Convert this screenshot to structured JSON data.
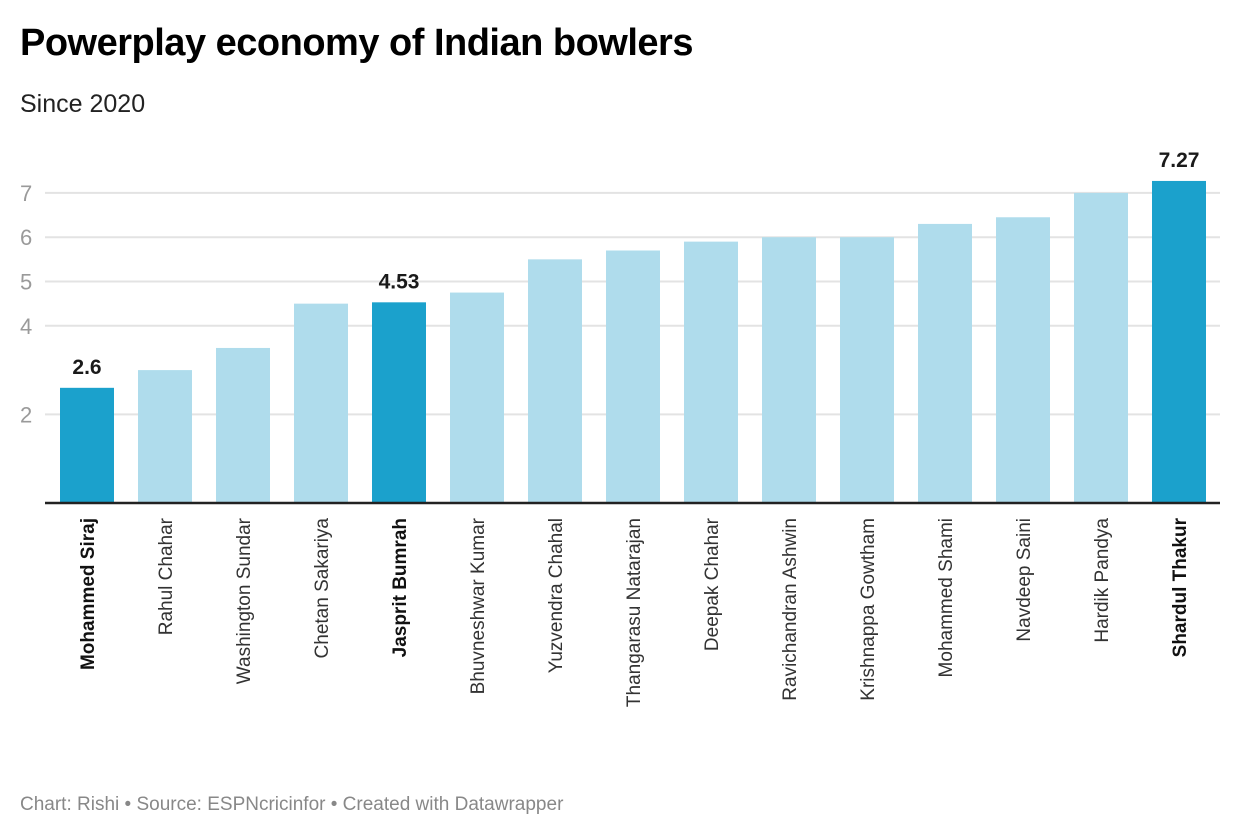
{
  "header": {
    "title": "Powerplay economy of Indian bowlers",
    "subtitle": "Since 2020"
  },
  "footer": {
    "text": "Chart: Rishi • Source: ESPNcricinfor • Created with Datawrapper"
  },
  "colors": {
    "highlight": "#1ba1cc",
    "base": "#afdcec",
    "grid": "#e3e3e3",
    "baseline": "#222222"
  },
  "chart_data": {
    "type": "bar",
    "title": "Powerplay economy of Indian bowlers",
    "subtitle": "Since 2020",
    "xlabel": "",
    "ylabel": "",
    "ylim": [
      0,
      7.5
    ],
    "yticks": [
      2,
      4,
      5,
      6,
      7
    ],
    "grid": true,
    "legend": "none",
    "categories": [
      "Mohammed Siraj",
      "Rahul Chahar",
      "Washington Sundar",
      "Chetan Sakariya",
      "Jasprit Bumrah",
      "Bhuvneshwar Kumar",
      "Yuzvendra Chahal",
      "Thangarasu Natarajan",
      "Deepak Chahar",
      "Ravichandran Ashwin",
      "Krishnappa Gowtham",
      "Mohammed Shami",
      "Navdeep Saini",
      "Hardik Pandya",
      "Shardul Thakur"
    ],
    "values": [
      2.6,
      3.0,
      3.5,
      4.5,
      4.53,
      4.75,
      5.5,
      5.7,
      5.9,
      6.0,
      6.0,
      6.3,
      6.45,
      7.0,
      7.27
    ],
    "highlighted": [
      true,
      false,
      false,
      false,
      true,
      false,
      false,
      false,
      false,
      false,
      false,
      false,
      false,
      false,
      true
    ],
    "data_labels": [
      "2.6",
      "",
      "",
      "",
      "4.53",
      "",
      "",
      "",
      "",
      "",
      "",
      "",
      "",
      "",
      "7.27"
    ]
  }
}
